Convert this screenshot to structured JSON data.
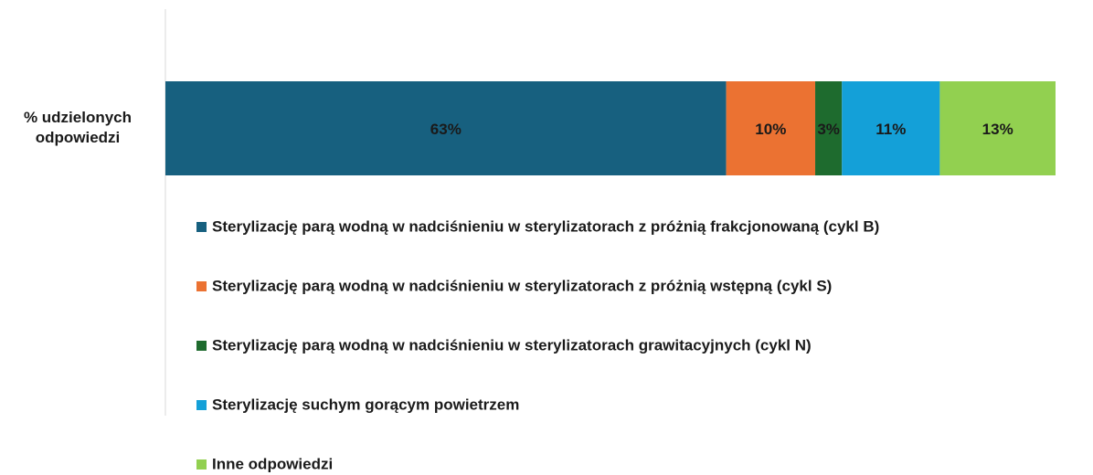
{
  "chart_data": {
    "type": "bar",
    "orientation": "horizontal",
    "stacked": true,
    "categories": [
      "% udzielonych odpowiedzi"
    ],
    "series": [
      {
        "name": "Sterylizację parą wodną w nadciśnieniu w sterylizatorach z próżnią frakcjonowaną (cykl B)",
        "color": "#17607f",
        "values": [
          63
        ],
        "value_labels": [
          "63%"
        ]
      },
      {
        "name": "Sterylizację parą wodną w nadciśnieniu w sterylizatorach z próżnią wstępną (cykl S)",
        "color": "#eb7232",
        "values": [
          10
        ],
        "value_labels": [
          "10%"
        ]
      },
      {
        "name": "Sterylizację parą wodną w nadciśnieniu w sterylizatorach grawitacyjnych (cykl N)",
        "color": "#1e6b2e",
        "values": [
          3
        ],
        "value_labels": [
          "3%"
        ]
      },
      {
        "name": "Sterylizację suchym gorącym powietrzem",
        "color": "#14a0d8",
        "values": [
          11
        ],
        "value_labels": [
          "11%"
        ]
      },
      {
        "name": "Inne odpowiedzi",
        "color": "#92d050",
        "values": [
          13
        ],
        "value_labels": [
          "13%"
        ]
      }
    ],
    "xlim": [
      0,
      100
    ],
    "legend": "bottom"
  }
}
